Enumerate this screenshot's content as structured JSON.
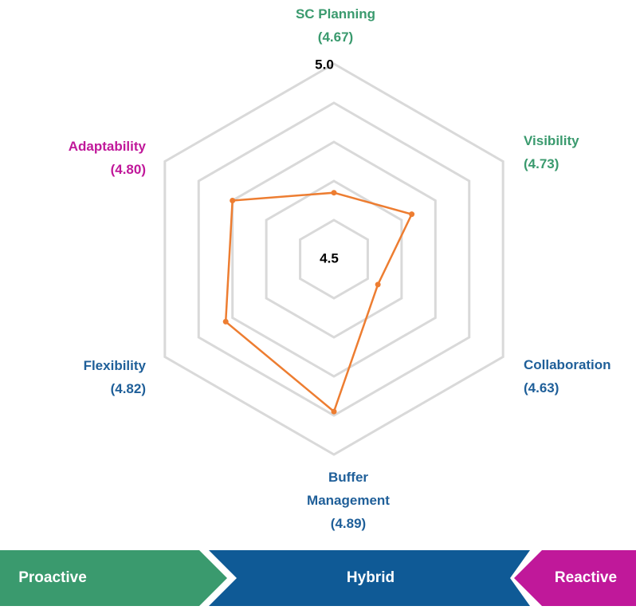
{
  "chart_data": {
    "type": "radar",
    "categories": [
      "SC Planning",
      "Visibility",
      "Collaboration",
      "Buffer Management",
      "Flexibility",
      "Adaptability"
    ],
    "values": [
      4.67,
      4.73,
      4.63,
      4.89,
      4.82,
      4.8
    ],
    "value_labels": [
      "(4.67)",
      "(4.73)",
      "(4.63)",
      "(4.89)",
      "(4.82)",
      "(4.80)"
    ],
    "label_colors": [
      "#3a9a6e",
      "#3a9a6e",
      "#1f5f99",
      "#1f5f99",
      "#1f5f99",
      "#c0189a"
    ],
    "color": "#ed7d31",
    "grid_color": "#d9d9d9",
    "ylim": [
      4.5,
      5.0
    ],
    "yticks": [
      4.5,
      {
        "value": 4.6,
        "label": null
      },
      {
        "value": 4.7,
        "label": null
      },
      {
        "value": 4.8,
        "label": null
      },
      {
        "value": 4.9,
        "label": null
      },
      {
        "value": 5.0,
        "label": "5.0"
      }
    ],
    "grid": true,
    "bands": [
      {
        "label": "Proactive",
        "color": "#3a9a6e"
      },
      {
        "label": "Hybrid",
        "color": "#0f5a96"
      },
      {
        "label": "Reactive",
        "color": "#c0189a"
      }
    ]
  }
}
